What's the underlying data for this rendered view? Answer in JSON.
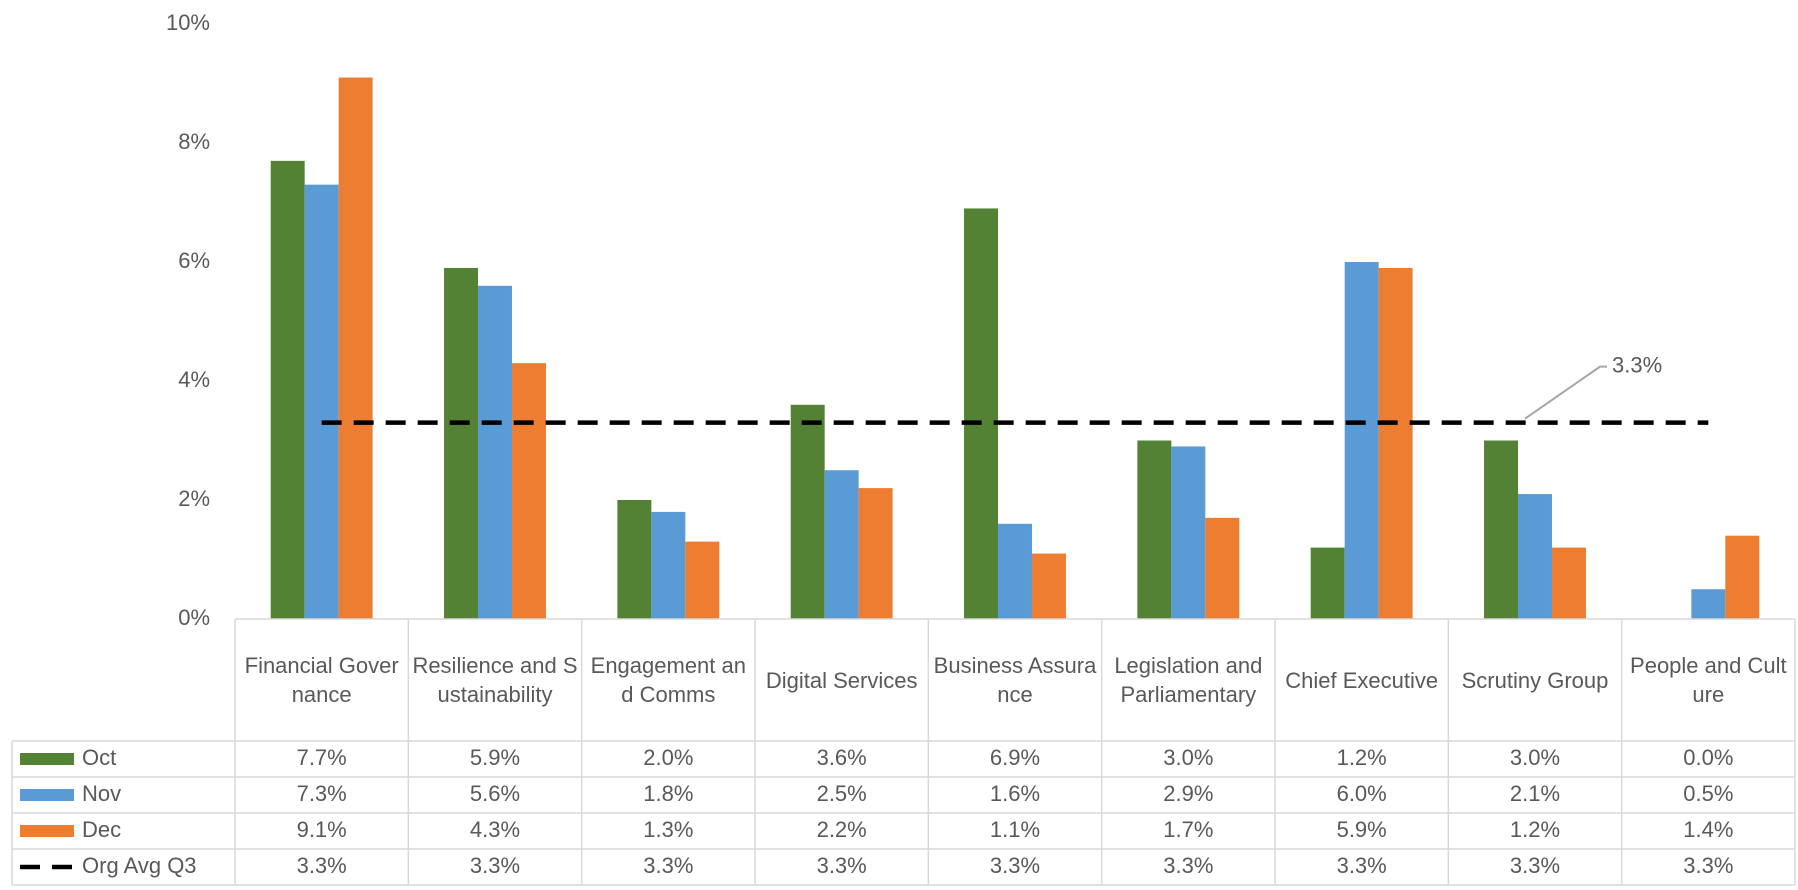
{
  "chart_data": {
    "type": "bar",
    "categories": [
      "Financial Governance",
      "Resilience and Sustainability",
      "Engagement and Comms",
      "Digital Services",
      "Business Assurance",
      "Legislation and Parliamentary",
      "Chief Executive",
      "Scrutiny Group",
      "People and Culture"
    ],
    "series": [
      {
        "name": "Oct",
        "color": "#548235",
        "values": [
          7.7,
          5.9,
          2.0,
          3.6,
          6.9,
          3.0,
          1.2,
          3.0,
          0.0
        ],
        "value_labels": [
          "7.7%",
          "5.9%",
          "2.0%",
          "3.6%",
          "6.9%",
          "3.0%",
          "1.2%",
          "3.0%",
          "0.0%"
        ]
      },
      {
        "name": "Nov",
        "color": "#5b9bd5",
        "values": [
          7.3,
          5.6,
          1.8,
          2.5,
          1.6,
          2.9,
          6.0,
          2.1,
          0.5
        ],
        "value_labels": [
          "7.3%",
          "5.6%",
          "1.8%",
          "2.5%",
          "1.6%",
          "2.9%",
          "6.0%",
          "2.1%",
          "0.5%"
        ]
      },
      {
        "name": "Dec",
        "color": "#ed7d31",
        "values": [
          9.1,
          4.3,
          1.3,
          2.2,
          1.1,
          1.7,
          5.9,
          1.2,
          1.4
        ],
        "value_labels": [
          "9.1%",
          "4.3%",
          "1.3%",
          "2.2%",
          "1.1%",
          "1.7%",
          "5.9%",
          "1.2%",
          "1.4%"
        ]
      },
      {
        "name": "Org Avg Q3",
        "color": "#000000",
        "type": "line",
        "dashed": true,
        "values": [
          3.3,
          3.3,
          3.3,
          3.3,
          3.3,
          3.3,
          3.3,
          3.3,
          3.3
        ],
        "value_labels": [
          "3.3%",
          "3.3%",
          "3.3%",
          "3.3%",
          "3.3%",
          "3.3%",
          "3.3%",
          "3.3%",
          "3.3%"
        ]
      }
    ],
    "ylim": [
      0,
      10
    ],
    "yticks": [
      {
        "value": 0,
        "label": "0%"
      },
      {
        "value": 2,
        "label": "2%"
      },
      {
        "value": 4,
        "label": "4%"
      },
      {
        "value": 6,
        "label": "6%"
      },
      {
        "value": 8,
        "label": "8%"
      },
      {
        "value": 10,
        "label": "10%"
      }
    ],
    "data_table": true
  }
}
